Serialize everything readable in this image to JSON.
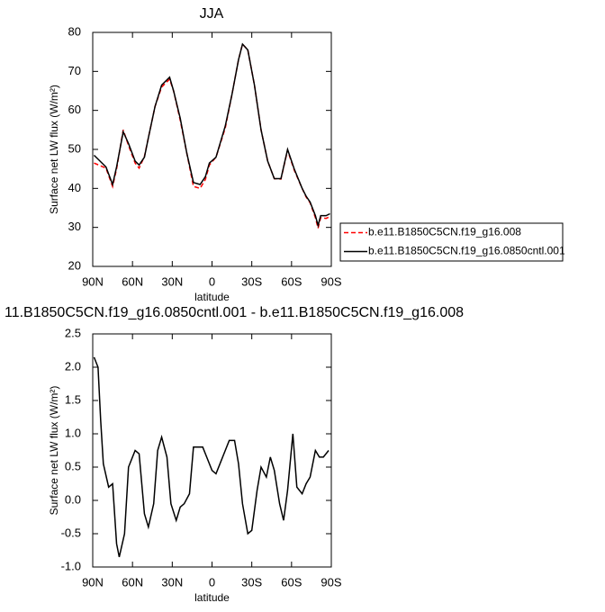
{
  "chart_data": [
    {
      "type": "line",
      "title": "JJA",
      "x_label": "latitude",
      "y_label": "Surface net LW flux (W/m²)",
      "xlim": [
        90,
        -90
      ],
      "xticks": [
        {
          "value": 90,
          "label": "90N"
        },
        {
          "value": 60,
          "label": "60N"
        },
        {
          "value": 30,
          "label": "30N"
        },
        0,
        {
          "value": -30,
          "label": "30S"
        },
        {
          "value": -60,
          "label": "60S"
        },
        {
          "value": -90,
          "label": "90S"
        }
      ],
      "ylim": [
        20,
        80
      ],
      "yticks": [
        20,
        30,
        40,
        50,
        60,
        70,
        80
      ],
      "legend": "right",
      "x": [
        89,
        80,
        75,
        72,
        67,
        63,
        58,
        55,
        51,
        48,
        43,
        38,
        32,
        29,
        24,
        19,
        14,
        9,
        5,
        2,
        -3,
        -10,
        -15,
        -20,
        -23,
        -27,
        -32,
        -37,
        -42,
        -47,
        -52,
        -57,
        -62,
        -68,
        -71,
        -74,
        -78,
        -80,
        -82,
        -86,
        -89
      ],
      "series": [
        {
          "name": "b.e11.B1850C5CN.f19_g16.008",
          "color": "#ff0000",
          "dashed": true,
          "values": [
            46.5,
            45.2,
            40.5,
            45,
            55,
            51,
            46.5,
            45.2,
            48.2,
            53,
            61,
            66,
            68,
            65,
            57.5,
            49,
            40.5,
            40,
            42.3,
            46,
            48,
            55.5,
            64,
            73,
            77,
            75.5,
            66.5,
            55,
            47,
            42.5,
            42.4,
            49.8,
            44.7,
            40,
            37.8,
            36.3,
            32.5,
            29.8,
            32.5,
            32.3,
            32.8
          ]
        },
        {
          "name": "b.e11.B1850C5CN.f19_g16.0850cntl.001",
          "color": "#000000",
          "dashed": false,
          "values": [
            48.5,
            45.5,
            41,
            45.5,
            54.5,
            51.5,
            47,
            46,
            48,
            53,
            61,
            66.5,
            68.5,
            65,
            58,
            49,
            41.5,
            41,
            43,
            46.5,
            48,
            56,
            64,
            73,
            77,
            75.5,
            66.5,
            55,
            47,
            42.5,
            42.5,
            50,
            45,
            40,
            38,
            36.5,
            33,
            30.5,
            33,
            33,
            33.5
          ]
        }
      ]
    },
    {
      "type": "line",
      "title": "11.B1850C5CN.f19_g16.0850cntl.001 - b.e11.B1850C5CN.f19_g16.008",
      "x_label": "latitude",
      "y_label": "Surface net LW flux (W/m²)",
      "xlim": [
        90,
        -90
      ],
      "xticks": [
        {
          "value": 90,
          "label": "90N"
        },
        {
          "value": 60,
          "label": "60N"
        },
        {
          "value": 30,
          "label": "30N"
        },
        0,
        {
          "value": -30,
          "label": "30S"
        },
        {
          "value": -60,
          "label": "60S"
        },
        {
          "value": -90,
          "label": "90S"
        }
      ],
      "ylim": [
        -1,
        2.5
      ],
      "yticks": [
        {
          "value": -1,
          "label": "-1.0"
        },
        -0.5,
        {
          "value": 0,
          "label": "0.0"
        },
        0.5,
        {
          "value": 1,
          "label": "1.0"
        },
        1.5,
        {
          "value": 2,
          "label": "2.0"
        },
        2.5
      ],
      "x": [
        89,
        86,
        84,
        82,
        78,
        75,
        72,
        70,
        66,
        63,
        58,
        55,
        51,
        48,
        44,
        41,
        38,
        34,
        31,
        27,
        24,
        21,
        17,
        14,
        10,
        7,
        4,
        0,
        -3,
        -6,
        -10,
        -13,
        -17,
        -20,
        -23,
        -27,
        -30,
        -34,
        -37,
        -41,
        -44,
        -47,
        -51,
        -54,
        -57,
        -61,
        -64,
        -68,
        -71,
        -74,
        -78,
        -81,
        -84,
        -88
      ],
      "series": [
        {
          "color": "#000000",
          "dashed": false,
          "values": [
            2.15,
            2.0,
            1.2,
            0.55,
            0.2,
            0.25,
            -0.65,
            -0.85,
            -0.5,
            0.5,
            0.75,
            0.7,
            -0.2,
            -0.4,
            -0.05,
            0.75,
            0.95,
            0.65,
            -0.05,
            -0.3,
            -0.1,
            -0.05,
            0.1,
            0.8,
            0.8,
            0.8,
            0.65,
            0.45,
            0.4,
            0.55,
            0.75,
            0.9,
            0.9,
            0.55,
            -0.05,
            -0.5,
            -0.45,
            0.15,
            0.5,
            0.35,
            0.65,
            0.45,
            -0.05,
            -0.3,
            0.15,
            1.0,
            0.2,
            0.1,
            0.25,
            0.35,
            0.75,
            0.65,
            0.65,
            0.75
          ]
        }
      ]
    }
  ]
}
